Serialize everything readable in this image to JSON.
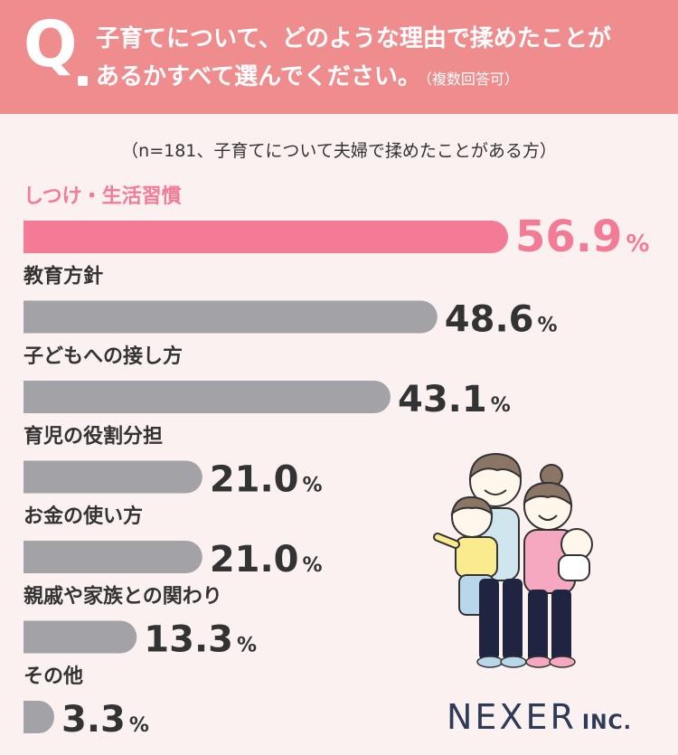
{
  "question": {
    "mark": "Q",
    "line1": "子育てについて、どのような理由で揉めたことが",
    "line2": "あるかすべて選んでください。",
    "note": "（複数回答可）"
  },
  "subtitle": "（n=181、子育てについて夫婦で揉めたことがある方）",
  "logo": {
    "main": "NEXER",
    "suffix": "INC."
  },
  "chart_data": {
    "type": "bar",
    "orientation": "horizontal",
    "unit": "%",
    "xlim": [
      0,
      100
    ],
    "categories": [
      "しつけ・生活習慣",
      "教育方針",
      "子どもへの接し方",
      "育児の役割分担",
      "お金の使い方",
      "親戚や家族との関わり",
      "その他"
    ],
    "values": [
      56.9,
      48.6,
      43.1,
      21.0,
      21.0,
      13.3,
      3.3
    ],
    "value_labels": [
      "56.9",
      "48.6",
      "43.1",
      "21.0",
      "21.0",
      "13.3",
      "3.3"
    ],
    "colors": {
      "highlight": "#f47b95",
      "default": "#a2a2a7"
    },
    "grid": false,
    "legend": "none"
  }
}
